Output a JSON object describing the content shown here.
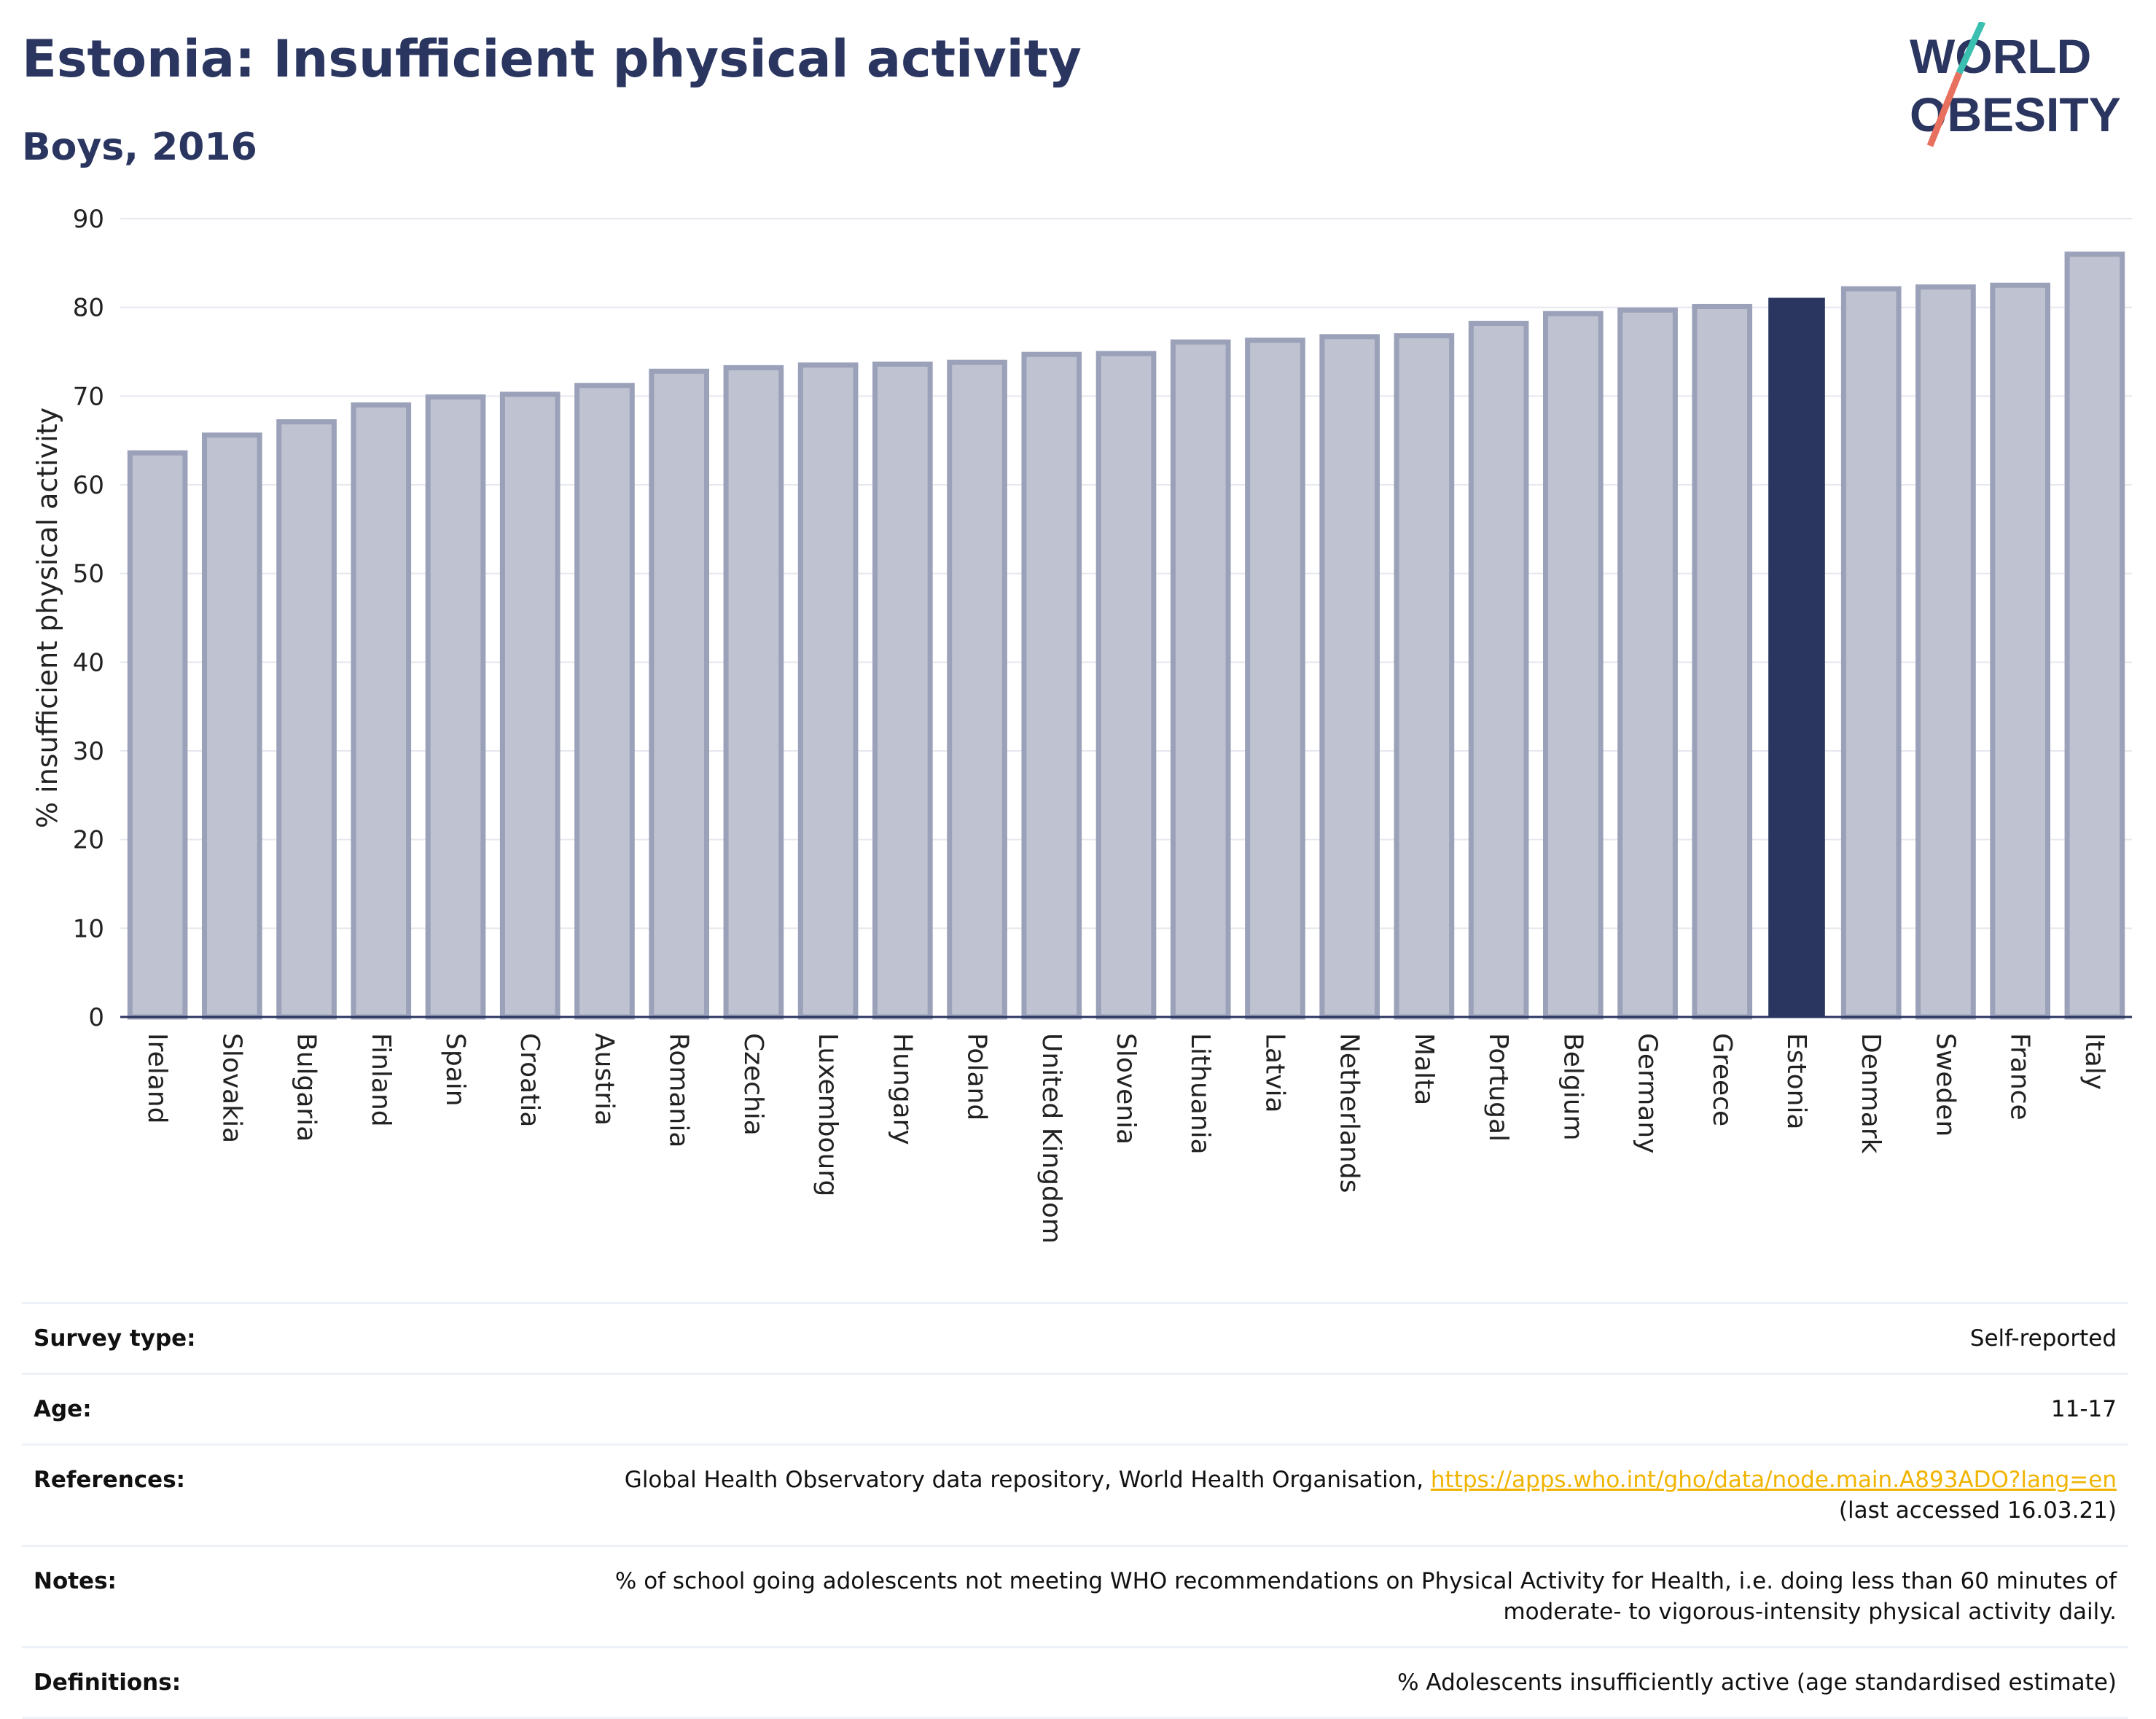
{
  "header": {
    "title": "Estonia: Insufficient physical activity",
    "subtitle": "Boys, 2016"
  },
  "logo": {
    "line1": "WORLD",
    "line2": "OBESITY"
  },
  "colors": {
    "highlight": "#2a3560",
    "bar_fill": "#bfc3d1",
    "bar_stroke": "#9aa1b8",
    "title": "#2a3560",
    "link": "#f0b400"
  },
  "chart_data": {
    "type": "bar",
    "ylabel": "% insufficient physical activity",
    "xlabel": "",
    "ylim": [
      0,
      90
    ],
    "yticks": [
      0,
      10,
      20,
      30,
      40,
      50,
      60,
      70,
      80,
      90
    ],
    "grid": true,
    "highlight": "Estonia",
    "categories": [
      "Ireland",
      "Slovakia",
      "Bulgaria",
      "Finland",
      "Spain",
      "Croatia",
      "Austria",
      "Romania",
      "Czechia",
      "Luxembourg",
      "Hungary",
      "Poland",
      "United Kingdom",
      "Slovenia",
      "Lithuania",
      "Latvia",
      "Netherlands",
      "Malta",
      "Portugal",
      "Belgium",
      "Germany",
      "Greece",
      "Estonia",
      "Denmark",
      "Sweden",
      "France",
      "Italy"
    ],
    "values": [
      63.6,
      65.6,
      67.1,
      69.0,
      69.9,
      70.2,
      71.2,
      72.8,
      73.2,
      73.5,
      73.6,
      73.8,
      74.7,
      74.8,
      76.1,
      76.3,
      76.7,
      76.8,
      78.2,
      79.3,
      79.7,
      80.1,
      81.0,
      82.1,
      82.3,
      82.5,
      86.0
    ]
  },
  "info": {
    "survey_type_label": "Survey type:",
    "survey_type_value": "Self-reported",
    "age_label": "Age:",
    "age_value": "11-17",
    "references_label": "References:",
    "references_text": "Global Health Observatory data repository, World Health Organisation,",
    "references_link": "https://apps.who.int/gho/data/node.main.A893ADO?lang=en",
    "references_accessed": "(last accessed 16.03.21)",
    "notes_label": "Notes:",
    "notes_value": "% of school going adolescents not meeting WHO recommendations on Physical Activity for Health, i.e. doing less than 60 minutes of moderate- to vigorous-intensity physical activity daily.",
    "definitions_label": "Definitions:",
    "definitions_value": "% Adolescents insufficiently active (age standardised estimate)"
  }
}
